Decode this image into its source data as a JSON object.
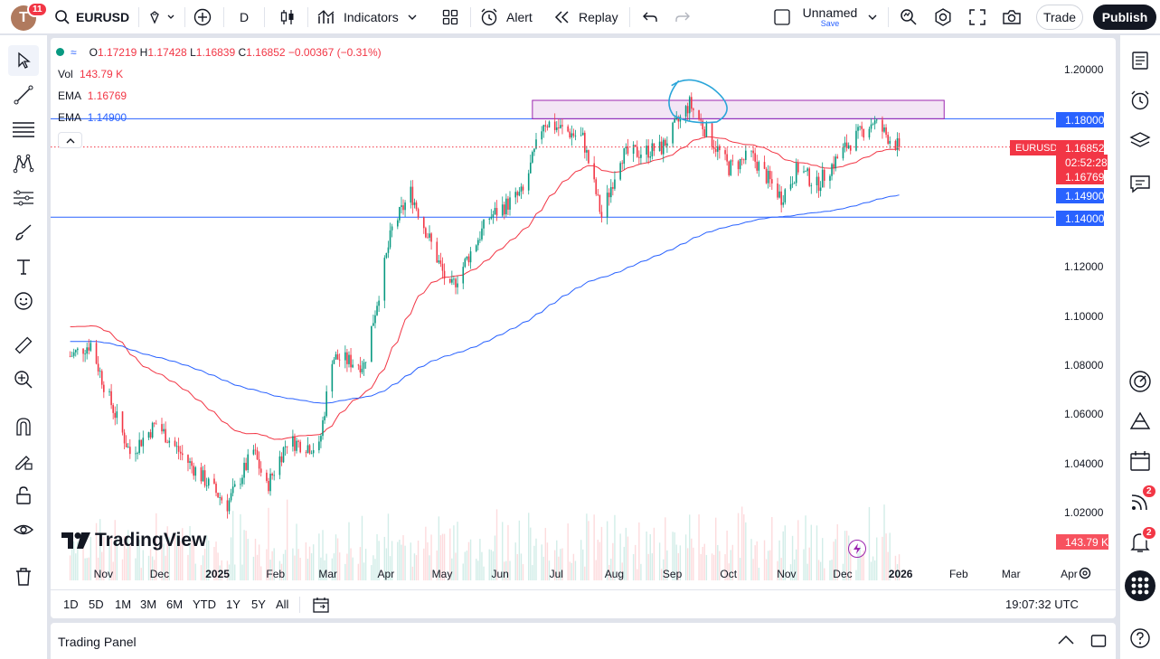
{
  "header": {
    "avatar_letter": "T",
    "avatar_badge": "11",
    "symbol": "EURUSD",
    "interval": "D",
    "indicators_label": "Indicators",
    "alert_label": "Alert",
    "replay_label": "Replay",
    "layout_name": "Unnamed",
    "layout_status": "Save",
    "trade_label": "Trade",
    "publish_label": "Publish"
  },
  "legend": {
    "open_label": "O",
    "open": "1.17219",
    "high_label": "H",
    "high": "1.17428",
    "low_label": "L",
    "low": "1.16839",
    "close_label": "C",
    "close": "1.16852",
    "change": "−0.00367 (−0.31%)",
    "vol_label": "Vol",
    "vol_value": "143.79 K",
    "ema1_label": "EMA",
    "ema1_value": "1.16769",
    "ema2_label": "EMA",
    "ema2_value": "1.14900"
  },
  "price_scale": {
    "ticks": [
      "1.20000",
      "1.18000",
      "1.16000",
      "1.14000",
      "1.12000",
      "1.10000",
      "1.08000",
      "1.06000",
      "1.04000",
      "1.02000"
    ],
    "tags": {
      "line_top": "1.18000",
      "symbol_name": "EURUSD",
      "last_price": "1.16852",
      "countdown": "02:52:28",
      "ema_fast": "1.16769",
      "ema_slow": "1.14900",
      "line_bottom": "1.14000",
      "volume": "143.79 K"
    }
  },
  "time_axis": [
    "Nov",
    "Dec",
    "2025",
    "Feb",
    "Mar",
    "Apr",
    "May",
    "Jun",
    "Jul",
    "Aug",
    "Sep",
    "Oct",
    "Nov",
    "Dec",
    "2026",
    "Feb",
    "Mar",
    "Apr"
  ],
  "range_bar": {
    "ranges": [
      "1D",
      "5D",
      "1M",
      "3M",
      "6M",
      "YTD",
      "1Y",
      "5Y",
      "All"
    ],
    "clock": "19:07:32 UTC"
  },
  "watermark": "TradingView",
  "trading_panel": "Trading Panel",
  "right_badges": {
    "ideas": "2",
    "notifications": "2"
  },
  "colors": {
    "up": "#089981",
    "down": "#f23645",
    "ema_fast": "#f23645",
    "ema_slow": "#2962ff",
    "hline": "#2962ff",
    "zone": "#9c27b0",
    "circle": "#2aa5d9"
  },
  "chart_data": {
    "type": "candlestick",
    "symbol": "EURUSD",
    "timeframe": "D",
    "y_range": [
      1.015,
      1.205
    ],
    "horizontal_lines": [
      1.18,
      1.14
    ],
    "resistance_zone": {
      "from_month": "Jun 2025",
      "to_month": "Jan 2026",
      "low": 1.18,
      "high": 1.1875
    },
    "anchors": [
      [
        "2024-10-21",
        1.0835
      ],
      [
        "2024-11-01",
        1.0885
      ],
      [
        "2024-11-08",
        1.072
      ],
      [
        "2024-11-22",
        1.044
      ],
      [
        "2024-12-06",
        1.056
      ],
      [
        "2024-12-20",
        1.043
      ],
      [
        "2025-01-13",
        1.023
      ],
      [
        "2025-01-27",
        1.045
      ],
      [
        "2025-02-03",
        1.03
      ],
      [
        "2025-02-14",
        1.049
      ],
      [
        "2025-03-03",
        1.046
      ],
      [
        "2025-03-10",
        1.083
      ],
      [
        "2025-03-27",
        1.08
      ],
      [
        "2025-04-11",
        1.135
      ],
      [
        "2025-04-21",
        1.15
      ],
      [
        "2025-05-12",
        1.11
      ],
      [
        "2025-06-02",
        1.14
      ],
      [
        "2025-06-20",
        1.15
      ],
      [
        "2025-07-01",
        1.179
      ],
      [
        "2025-07-22",
        1.172
      ],
      [
        "2025-08-01",
        1.14
      ],
      [
        "2025-08-11",
        1.165
      ],
      [
        "2025-09-02",
        1.168
      ],
      [
        "2025-09-17",
        1.186
      ],
      [
        "2025-10-08",
        1.16
      ],
      [
        "2025-10-20",
        1.165
      ],
      [
        "2025-11-05",
        1.148
      ],
      [
        "2025-11-14",
        1.16
      ],
      [
        "2025-11-24",
        1.153
      ],
      [
        "2025-12-10",
        1.169
      ],
      [
        "2025-12-24",
        1.179
      ],
      [
        "2026-01-02",
        1.172
      ],
      [
        "2026-01-07",
        1.16852
      ]
    ]
  }
}
